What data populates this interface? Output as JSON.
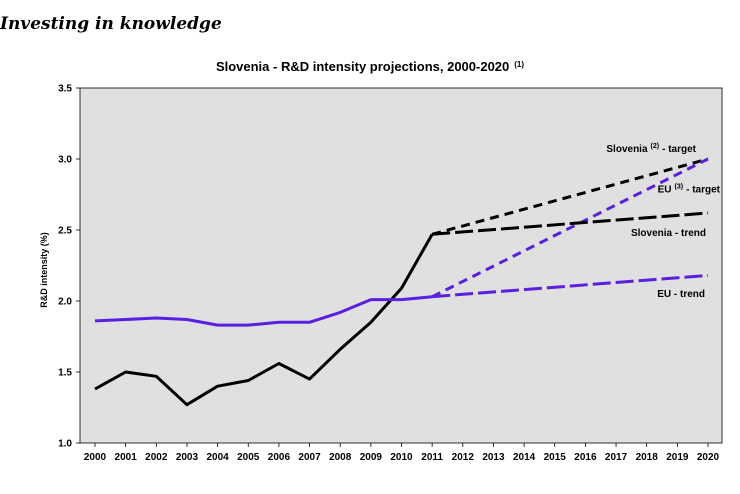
{
  "page": {
    "heading": "Investing in knowledge"
  },
  "chart_data": {
    "type": "line",
    "title": "Slovenia - R&D intensity projections, 2000-2020",
    "title_note": "(1)",
    "xlabel": "",
    "ylabel": "R&D intensity (%)",
    "ylim": [
      1.0,
      3.5
    ],
    "yticks": [
      "1.0",
      "1.5",
      "2.0",
      "2.5",
      "3.0",
      "3.5"
    ],
    "x": [
      "2000",
      "2001",
      "2002",
      "2003",
      "2004",
      "2005",
      "2006",
      "2007",
      "2008",
      "2009",
      "2010",
      "2011",
      "2012",
      "2013",
      "2014",
      "2015",
      "2016",
      "2017",
      "2018",
      "2019",
      "2020"
    ],
    "grid": false,
    "series": [
      {
        "name": "Slovenia",
        "style": "solid",
        "color": "#000000",
        "points": [
          [
            2000,
            1.38
          ],
          [
            2001,
            1.5
          ],
          [
            2002,
            1.47
          ],
          [
            2003,
            1.27
          ],
          [
            2004,
            1.4
          ],
          [
            2005,
            1.44
          ],
          [
            2006,
            1.56
          ],
          [
            2007,
            1.45
          ],
          [
            2008,
            1.66
          ],
          [
            2009,
            1.85
          ],
          [
            2010,
            2.09
          ],
          [
            2011,
            2.47
          ]
        ]
      },
      {
        "name": "EU",
        "style": "solid",
        "color": "#5A1FE0",
        "points": [
          [
            2000,
            1.86
          ],
          [
            2001,
            1.87
          ],
          [
            2002,
            1.88
          ],
          [
            2003,
            1.87
          ],
          [
            2004,
            1.83
          ],
          [
            2005,
            1.83
          ],
          [
            2006,
            1.85
          ],
          [
            2007,
            1.85
          ],
          [
            2008,
            1.92
          ],
          [
            2009,
            2.01
          ],
          [
            2010,
            2.01
          ],
          [
            2011,
            2.03
          ]
        ]
      },
      {
        "name": "Slovenia - target",
        "label": "Slovenia",
        "note": "(2)",
        "label_suffix": "- target",
        "style": "dashed",
        "color": "#000000",
        "points": [
          [
            2011,
            2.47
          ],
          [
            2020,
            3.0
          ]
        ]
      },
      {
        "name": "EU - target",
        "label": "EU",
        "note": "(3)",
        "label_suffix": "- target",
        "style": "dashed",
        "color": "#5A1FE0",
        "points": [
          [
            2011,
            2.03
          ],
          [
            2020,
            3.0
          ]
        ]
      },
      {
        "name": "Slovenia - trend",
        "style": "long-dashed",
        "color": "#000000",
        "points": [
          [
            2011,
            2.47
          ],
          [
            2020,
            2.62
          ]
        ]
      },
      {
        "name": "EU - trend",
        "style": "long-dashed",
        "color": "#5A1FE0",
        "points": [
          [
            2011,
            2.03
          ],
          [
            2020,
            2.18
          ]
        ]
      }
    ],
    "colors": {
      "plot_background": "#E0E0E0",
      "slovenia": "#000000",
      "eu": "#5A1FE0"
    }
  }
}
